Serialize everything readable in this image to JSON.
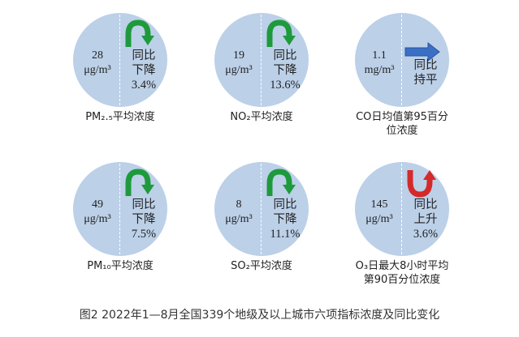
{
  "indicators": [
    {
      "value": "28",
      "unit": "μg/m³",
      "change_line1": "同比",
      "change_line2": "下降",
      "percent": "3.4%",
      "trend": "down",
      "label": "PM₂.₅平均浓度"
    },
    {
      "value": "19",
      "unit": "μg/m³",
      "change_line1": "同比",
      "change_line2": "下降",
      "percent": "13.6%",
      "trend": "down",
      "label": "NO₂平均浓度"
    },
    {
      "value": "1.1",
      "unit": "mg/m³",
      "change_line1": "同比",
      "change_line2": "持平",
      "percent": "",
      "trend": "flat",
      "label": "CO日均值第95百分位浓度"
    },
    {
      "value": "49",
      "unit": "μg/m³",
      "change_line1": "同比",
      "change_line2": "下降",
      "percent": "7.5%",
      "trend": "down",
      "label": "PM₁₀平均浓度"
    },
    {
      "value": "8",
      "unit": "μg/m³",
      "change_line1": "同比",
      "change_line2": "下降",
      "percent": "11.1%",
      "trend": "down",
      "label": "SO₂平均浓度"
    },
    {
      "value": "145",
      "unit": "μg/m³",
      "change_line1": "同比",
      "change_line2": "上升",
      "percent": "3.6%",
      "trend": "up",
      "label": "O₃日最大8小时平均第90百分位浓度"
    }
  ],
  "colors": {
    "circle": "#bcd0e8",
    "down": "#1e9a3c",
    "up": "#d42a2a",
    "flat": "#3a6fc4"
  },
  "caption": "图2 2022年1—8月全国339个地级及以上城市六项指标浓度及同比变化"
}
